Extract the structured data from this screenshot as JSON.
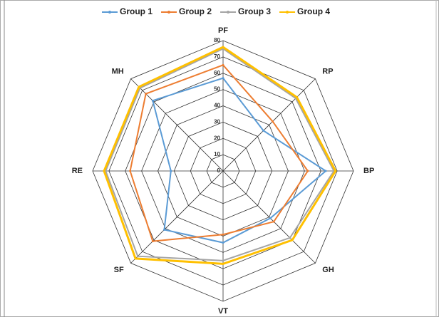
{
  "chart_data": {
    "type": "radar",
    "categories": [
      "PF",
      "RP",
      "BP",
      "GH",
      "VT",
      "SF",
      "RE",
      "MH"
    ],
    "rlim": [
      0,
      80
    ],
    "rticks": [
      0,
      10,
      20,
      30,
      40,
      50,
      60,
      70,
      80
    ],
    "legend": "top",
    "series": [
      {
        "name": "Group 1",
        "color": "#5b9bd5",
        "values": [
          57,
          35,
          63,
          41,
          44,
          51,
          32,
          61
        ]
      },
      {
        "name": "Group 2",
        "color": "#ed7d31",
        "values": [
          65,
          43,
          52,
          44,
          39,
          61,
          57,
          67
        ]
      },
      {
        "name": "Group 3",
        "color": "#a5a5a5",
        "values": [
          75,
          63,
          68,
          58,
          55,
          74,
          72,
          72
        ]
      },
      {
        "name": "Group 4",
        "color": "#ffc000",
        "values": [
          76,
          64,
          69,
          60,
          57,
          76,
          73,
          73
        ]
      }
    ]
  }
}
